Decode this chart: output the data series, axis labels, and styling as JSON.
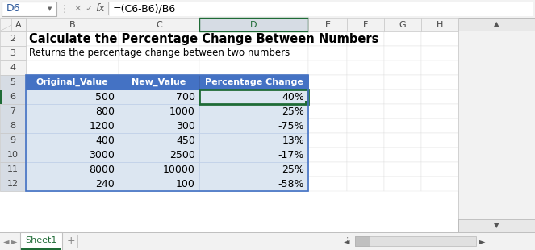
{
  "title": "Calculate the Percentage Change Between Numbers",
  "subtitle": "Returns the percentage change between two numbers",
  "formula_bar_cell": "D6",
  "formula_bar_formula": "=(C6-B6)/B6",
  "col_headers": [
    "Original_Value",
    "New_Value",
    "Percentage Change"
  ],
  "rows": [
    [
      500,
      700,
      "40%"
    ],
    [
      800,
      1000,
      "25%"
    ],
    [
      1200,
      300,
      "-75%"
    ],
    [
      400,
      450,
      "13%"
    ],
    [
      3000,
      2500,
      "-17%"
    ],
    [
      8000,
      10000,
      "25%"
    ],
    [
      240,
      100,
      "-58%"
    ]
  ],
  "sheet_col_labels": [
    "A",
    "B",
    "C",
    "D",
    "E",
    "F",
    "G",
    "H"
  ],
  "header_bg": "#4472C4",
  "row_bg": "#DCE6F1",
  "active_cell_border": "#1F6B36",
  "sheet_tab_color": "#1F6B36",
  "col_header_selected_bg": "#D6DCE4",
  "col_header_selected_text": "#1F6B36",
  "formula_bar_bg": "#F2F2F2",
  "col_header_bg": "#F2F2F2",
  "row_num_bg": "#F2F2F2",
  "row_num_selected_bg": "#D6DCE4",
  "grid_line": "#D0D0D0",
  "tab_bar_bg": "#F2F2F2"
}
